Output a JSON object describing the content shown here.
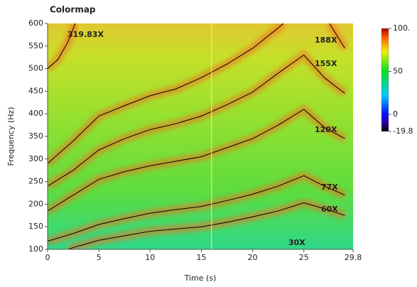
{
  "chart_data": {
    "type": "colormap",
    "title": "Colormap",
    "x_label": "Time (s)",
    "y_label": "Frequency (Hz)",
    "xlim": [
      0,
      29.8
    ],
    "xticks": [
      0,
      5,
      10,
      15,
      20,
      25,
      29.8
    ],
    "ylim": [
      100,
      600
    ],
    "yticks": [
      100,
      150,
      200,
      250,
      300,
      350,
      400,
      450,
      500,
      550,
      600
    ],
    "zlim": [
      -19.8,
      100
    ],
    "zticks": [
      {
        "value": 100,
        "label": "100."
      },
      50,
      0,
      -19.8
    ],
    "line_color": "#000000",
    "series": [
      {
        "x": [
          2,
          2.5,
          5,
          7.5,
          10,
          12.5,
          15,
          17.5,
          20,
          22.5,
          25,
          27,
          29
        ],
        "values": [
          100,
          104,
          120,
          130,
          140,
          145,
          150,
          160,
          172,
          185,
          203,
          190,
          175
        ]
      },
      {
        "x": [
          0,
          2.5,
          5,
          7.5,
          10,
          12.5,
          15,
          17.5,
          20,
          22.5,
          25,
          27,
          29
        ],
        "values": [
          118,
          135,
          155,
          168,
          180,
          188,
          195,
          208,
          222,
          240,
          263,
          240,
          220
        ]
      },
      {
        "x": [
          0,
          2.5,
          5,
          7.5,
          10,
          12.5,
          15,
          17.5,
          20,
          22.5,
          25,
          27,
          29
        ],
        "values": [
          185,
          220,
          255,
          272,
          285,
          295,
          305,
          325,
          345,
          375,
          410,
          370,
          345
        ]
      },
      {
        "x": [
          0,
          2.5,
          5,
          7.5,
          10,
          12.5,
          15,
          17.5,
          20,
          22.5,
          25,
          27,
          29
        ],
        "values": [
          240,
          275,
          320,
          345,
          365,
          378,
          395,
          420,
          448,
          490,
          530,
          480,
          445
        ]
      },
      {
        "x": [
          0,
          2.5,
          5,
          7.5,
          10,
          12.5,
          15,
          17.5,
          20,
          22.5,
          23,
          25,
          27.5,
          29
        ],
        "values": [
          290,
          340,
          395,
          418,
          440,
          455,
          480,
          510,
          545,
          590,
          600,
          null,
          600,
          545
        ]
      },
      {
        "x": [
          0,
          1,
          2,
          2.7
        ],
        "values": [
          500,
          520,
          560,
          600
        ]
      }
    ],
    "annotations": [
      "319.83X",
      "188X",
      "155X",
      "120X",
      "77X",
      "60X",
      "30X"
    ]
  }
}
